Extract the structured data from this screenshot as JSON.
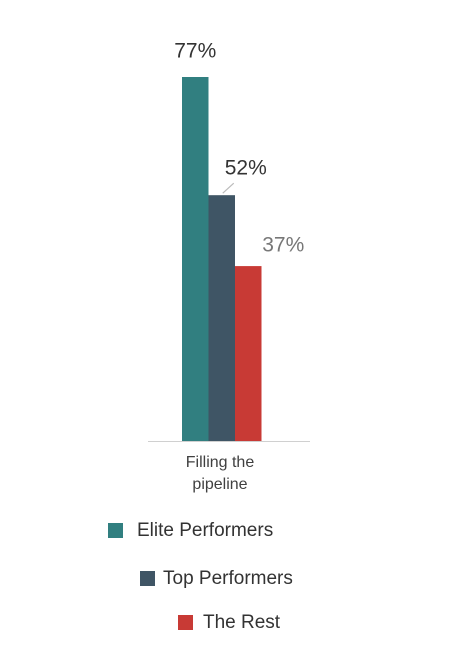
{
  "chart_data": {
    "type": "bar",
    "categories": [
      "Filling the pipeline"
    ],
    "series": [
      {
        "name": "Elite Performers",
        "color": "#317f80",
        "values": [
          77
        ],
        "value_labels": [
          "77%"
        ]
      },
      {
        "name": "Top Performers",
        "color": "#3f5565",
        "values": [
          52
        ],
        "value_labels": [
          "52%"
        ]
      },
      {
        "name": "The Rest",
        "color": "#c83a35",
        "values": [
          37
        ],
        "value_labels": [
          "37%"
        ]
      }
    ]
  }
}
